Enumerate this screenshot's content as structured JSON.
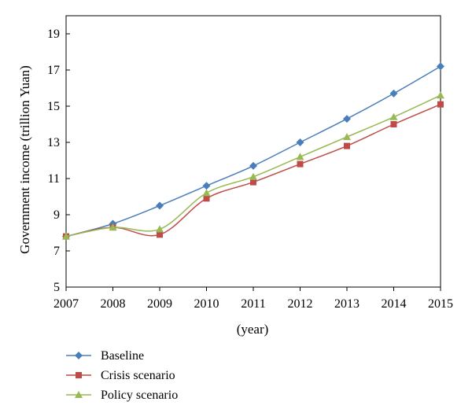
{
  "chart_data": {
    "type": "line",
    "xlabel": "(year)",
    "ylabel": "Government income (trillion Yuan)",
    "x": [
      "2007",
      "2008",
      "2009",
      "2010",
      "2011",
      "2012",
      "2013",
      "2014",
      "2015"
    ],
    "yticks": [
      "5",
      "7",
      "9",
      "11",
      "13",
      "15",
      "17",
      "19"
    ],
    "ylim": [
      5,
      20
    ],
    "grid": false,
    "legend_position": "bottom-left",
    "series": [
      {
        "name": "Baseline",
        "color": "#4a7ebb",
        "marker": "diamond",
        "values": [
          7.8,
          8.5,
          9.5,
          10.6,
          11.7,
          13.0,
          14.3,
          15.7,
          17.2
        ]
      },
      {
        "name": "Crisis scenario",
        "color": "#be4b48",
        "marker": "square",
        "values": [
          7.8,
          8.3,
          7.9,
          9.9,
          10.8,
          11.8,
          12.8,
          14.0,
          15.1
        ]
      },
      {
        "name": "Policy scenario",
        "color": "#98b954",
        "marker": "triangle",
        "values": [
          7.8,
          8.3,
          8.2,
          10.2,
          11.1,
          12.2,
          13.3,
          14.4,
          15.6
        ]
      }
    ]
  }
}
